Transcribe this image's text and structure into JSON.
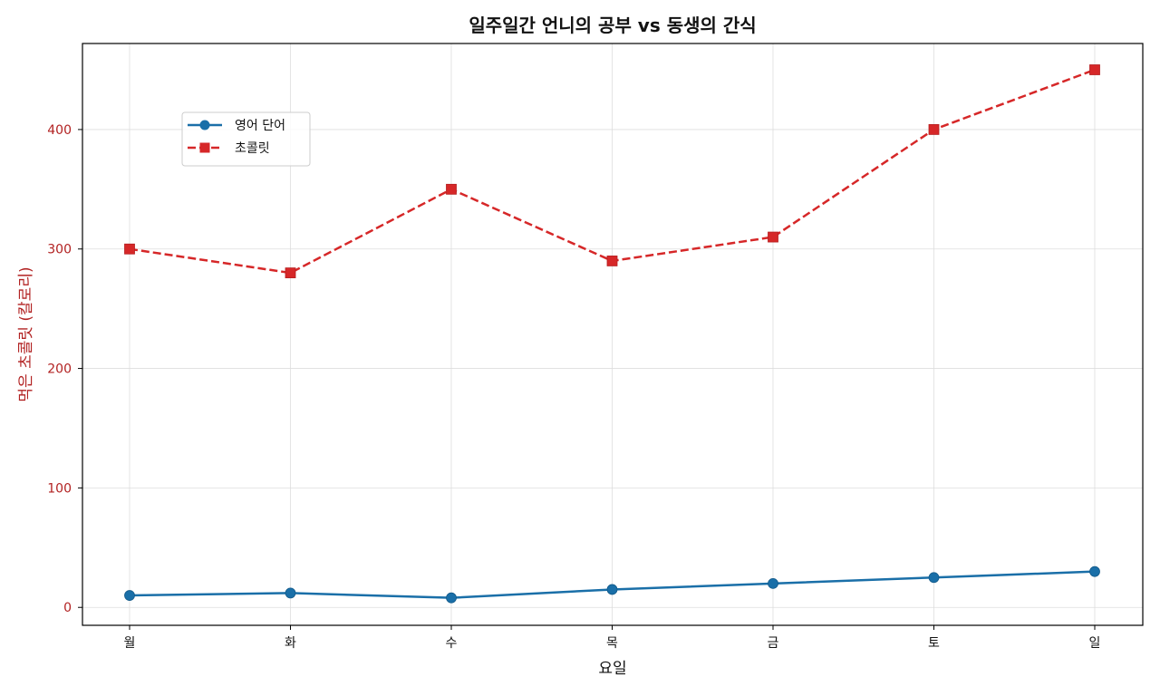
{
  "chart_data": {
    "type": "line",
    "title": "일주일간 언니의 공부 vs 동생의 간식",
    "xlabel": "요일",
    "ylabel": "먹은 초콜릿 (칼로리)",
    "categories": [
      "월",
      "화",
      "수",
      "목",
      "금",
      "토",
      "일"
    ],
    "ylim": [
      -15,
      472
    ],
    "yticks": [
      0,
      100,
      200,
      300,
      400
    ],
    "grid": true,
    "legend_position": "upper-left",
    "series": [
      {
        "name": "영어 단어",
        "values": [
          10,
          12,
          8,
          15,
          20,
          25,
          30
        ],
        "color": "#1a6fa8",
        "line_style": "solid",
        "marker": "circle"
      },
      {
        "name": "초콜릿",
        "values": [
          300,
          280,
          350,
          290,
          310,
          400,
          450
        ],
        "color": "#d62728",
        "line_style": "dashed",
        "marker": "square"
      }
    ]
  }
}
